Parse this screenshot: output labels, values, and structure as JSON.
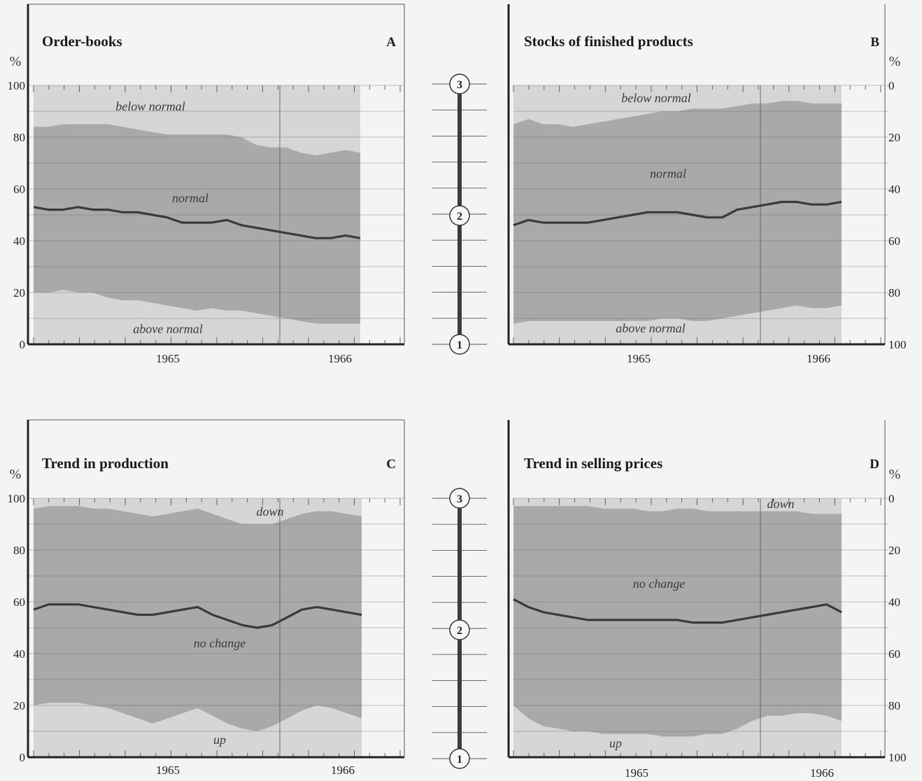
{
  "charts": [
    {
      "id": "A",
      "title": "Order-books",
      "letter": "A",
      "y_axis_side": "left",
      "y_axis_reversed": false,
      "y_label": "%",
      "y_ticks": [
        "0",
        "20",
        "40",
        "60",
        "80",
        "100"
      ],
      "x_ticks": [
        "1965",
        "1966"
      ],
      "band_labels": {
        "top": "below normal",
        "middle": "normal",
        "bottom": "above normal"
      }
    },
    {
      "id": "B",
      "title": "Stocks of finished products",
      "letter": "B",
      "y_axis_side": "right",
      "y_axis_reversed": true,
      "y_label": "%",
      "y_ticks": [
        "0",
        "20",
        "40",
        "60",
        "80",
        "100"
      ],
      "x_ticks": [
        "1965",
        "1966"
      ],
      "band_labels": {
        "top": "below normal",
        "middle": "normal",
        "bottom": "above normal"
      }
    },
    {
      "id": "C",
      "title": "Trend in production",
      "letter": "C",
      "y_axis_side": "left",
      "y_axis_reversed": false,
      "y_label": "%",
      "y_ticks": [
        "0",
        "20",
        "40",
        "60",
        "80",
        "100"
      ],
      "x_ticks": [
        "1965",
        "1966"
      ],
      "band_labels": {
        "top": "down",
        "middle": "no change",
        "bottom": "up"
      }
    },
    {
      "id": "D",
      "title": "Trend in selling prices",
      "letter": "D",
      "y_axis_side": "right",
      "y_axis_reversed": true,
      "y_label": "%",
      "y_ticks": [
        "0",
        "20",
        "40",
        "60",
        "80",
        "100"
      ],
      "x_ticks": [
        "1965",
        "1966"
      ],
      "band_labels": {
        "top": "down",
        "middle": "no change",
        "bottom": "up"
      }
    }
  ],
  "scale_markers": [
    "1",
    "2",
    "3"
  ],
  "colors": {
    "band_light": "#d6d6d6",
    "band_dark": "#a9a9a9",
    "line": "#3a3a3a",
    "background": "#f4f4f4"
  },
  "chart_data": [
    {
      "type": "area",
      "id": "A",
      "title": "Order-books",
      "ylabel": "%",
      "ylim": [
        0,
        100
      ],
      "x_range": [
        1964.25,
        1966.25
      ],
      "x": [
        1964.25,
        1964.33,
        1964.42,
        1964.5,
        1964.58,
        1964.67,
        1964.75,
        1964.83,
        1964.92,
        1965.0,
        1965.08,
        1965.17,
        1965.25,
        1965.33,
        1965.42,
        1965.5,
        1965.58,
        1965.67,
        1965.75,
        1965.83,
        1965.92,
        1966.0,
        1966.08
      ],
      "upper_boundary": [
        84,
        84,
        85,
        85,
        85,
        85,
        84,
        83,
        82,
        81,
        81,
        81,
        81,
        81,
        80,
        77,
        76,
        76,
        74,
        73,
        74,
        75,
        74
      ],
      "line": [
        53,
        52,
        52,
        53,
        52,
        52,
        51,
        51,
        50,
        49,
        47,
        47,
        47,
        48,
        46,
        45,
        44,
        43,
        42,
        41,
        41,
        42,
        41
      ],
      "lower_boundary": [
        20,
        20,
        21,
        20,
        20,
        18,
        17,
        17,
        16,
        15,
        14,
        13,
        14,
        13,
        13,
        12,
        11,
        10,
        9,
        8,
        8,
        8,
        8
      ]
    },
    {
      "type": "area",
      "id": "B",
      "title": "Stocks of finished products",
      "ylabel": "%",
      "ylim": [
        0,
        100
      ],
      "y_reversed": true,
      "x_range": [
        1964.25,
        1966.25
      ],
      "x": [
        1964.25,
        1964.33,
        1964.42,
        1964.5,
        1964.58,
        1964.67,
        1964.75,
        1964.83,
        1964.92,
        1965.0,
        1965.08,
        1965.17,
        1965.25,
        1965.33,
        1965.42,
        1965.5,
        1965.58,
        1965.67,
        1965.75,
        1965.83,
        1965.92,
        1966.0,
        1966.08
      ],
      "upper_boundary": [
        15,
        13,
        15,
        15,
        16,
        15,
        14,
        13,
        12,
        11,
        10,
        10,
        9,
        9,
        9,
        8,
        7,
        7,
        6,
        6,
        7,
        7,
        7
      ],
      "line": [
        54,
        52,
        53,
        53,
        53,
        53,
        52,
        51,
        50,
        49,
        49,
        49,
        50,
        51,
        51,
        48,
        47,
        46,
        45,
        45,
        46,
        46,
        45
      ],
      "lower_boundary": [
        92,
        91,
        91,
        91,
        91,
        91,
        91,
        91,
        91,
        91,
        90,
        90,
        91,
        91,
        90,
        89,
        88,
        87,
        86,
        85,
        86,
        86,
        85
      ]
    },
    {
      "type": "area",
      "id": "C",
      "title": "Trend in production",
      "ylabel": "%",
      "ylim": [
        0,
        100
      ],
      "x_range": [
        1964.25,
        1966.25
      ],
      "x": [
        1964.25,
        1964.33,
        1964.42,
        1964.5,
        1964.58,
        1964.67,
        1964.75,
        1964.83,
        1964.92,
        1965.0,
        1965.08,
        1965.17,
        1965.25,
        1965.33,
        1965.42,
        1965.5,
        1965.58,
        1965.67,
        1965.75,
        1965.83,
        1965.92,
        1966.0,
        1966.08
      ],
      "upper_boundary": [
        96,
        97,
        97,
        97,
        96,
        96,
        95,
        94,
        93,
        94,
        95,
        96,
        94,
        92,
        90,
        90,
        90,
        92,
        94,
        95,
        95,
        94,
        93
      ],
      "line": [
        57,
        59,
        59,
        59,
        58,
        57,
        56,
        55,
        55,
        56,
        57,
        58,
        55,
        53,
        51,
        50,
        51,
        54,
        57,
        58,
        57,
        56,
        55
      ],
      "lower_boundary": [
        20,
        21,
        21,
        21,
        20,
        19,
        17,
        15,
        13,
        15,
        17,
        19,
        16,
        13,
        11,
        10,
        12,
        15,
        18,
        20,
        19,
        17,
        15
      ]
    },
    {
      "type": "area",
      "id": "D",
      "title": "Trend in selling prices",
      "ylabel": "%",
      "ylim": [
        0,
        100
      ],
      "y_reversed": true,
      "x_range": [
        1964.25,
        1966.25
      ],
      "x": [
        1964.25,
        1964.33,
        1964.42,
        1964.5,
        1964.58,
        1964.67,
        1964.75,
        1964.83,
        1964.92,
        1965.0,
        1965.08,
        1965.17,
        1965.25,
        1965.33,
        1965.42,
        1965.5,
        1965.58,
        1965.67,
        1965.75,
        1965.83,
        1965.92,
        1966.0,
        1966.08
      ],
      "upper_boundary": [
        3,
        3,
        3,
        3,
        3,
        3,
        4,
        4,
        4,
        5,
        5,
        4,
        4,
        5,
        5,
        5,
        5,
        5,
        5,
        5,
        6,
        6,
        6
      ],
      "line": [
        39,
        42,
        44,
        45,
        46,
        47,
        47,
        47,
        47,
        47,
        47,
        47,
        48,
        48,
        48,
        47,
        46,
        45,
        44,
        43,
        42,
        41,
        44
      ],
      "lower_boundary": [
        80,
        85,
        88,
        89,
        90,
        90,
        91,
        91,
        91,
        91,
        92,
        92,
        92,
        91,
        91,
        89,
        86,
        84,
        84,
        83,
        83,
        84,
        86
      ]
    }
  ]
}
